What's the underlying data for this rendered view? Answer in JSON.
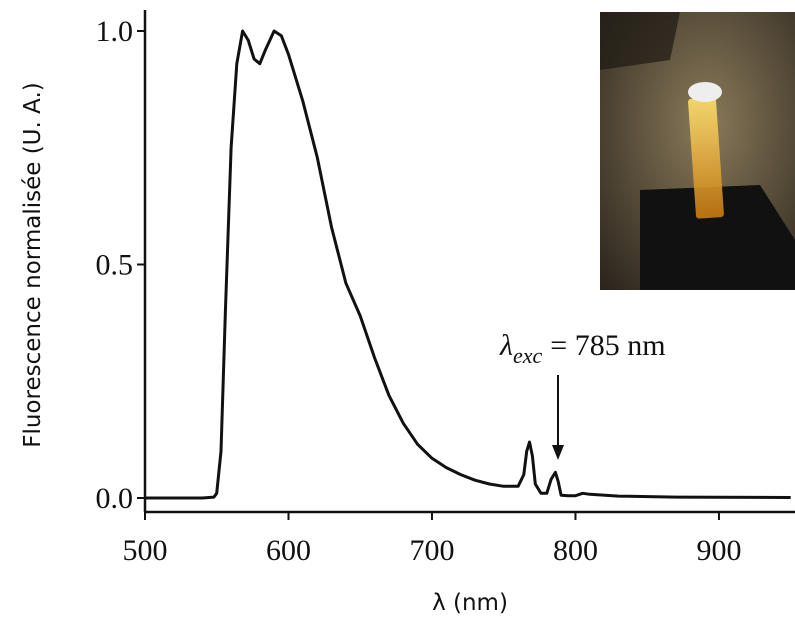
{
  "chart_data": {
    "type": "line",
    "xlabel": "λ (nm)",
    "ylabel": "Fluorescence normalisée (U. A.)",
    "annotation": {
      "symbol": "λ",
      "subscript": "exc",
      "text": "= 785 nm"
    },
    "x": [
      500,
      520,
      540,
      548,
      550,
      553,
      556,
      560,
      564,
      568,
      572,
      576,
      580,
      584,
      590,
      595,
      600,
      610,
      620,
      630,
      640,
      650,
      660,
      670,
      680,
      690,
      700,
      710,
      720,
      730,
      740,
      750,
      760,
      764,
      766,
      768,
      770,
      772,
      776,
      780,
      783,
      786,
      788,
      790,
      795,
      800,
      805,
      810,
      830,
      870,
      950
    ],
    "values": [
      0.0,
      0.0,
      0.0,
      0.002,
      0.01,
      0.1,
      0.4,
      0.75,
      0.93,
      1.0,
      0.98,
      0.94,
      0.93,
      0.96,
      1.0,
      0.99,
      0.95,
      0.85,
      0.73,
      0.58,
      0.46,
      0.39,
      0.3,
      0.22,
      0.16,
      0.115,
      0.085,
      0.065,
      0.05,
      0.038,
      0.03,
      0.025,
      0.025,
      0.05,
      0.1,
      0.12,
      0.09,
      0.03,
      0.01,
      0.01,
      0.04,
      0.055,
      0.035,
      0.006,
      0.005,
      0.005,
      0.01,
      0.008,
      0.004,
      0.002,
      0.001
    ],
    "color": "#111111",
    "xlim": [
      500,
      953
    ],
    "ylim": [
      -0.03,
      1.045
    ],
    "xticks": [
      500,
      600,
      700,
      800,
      900
    ],
    "yticks": [
      {
        "value": 0,
        "label": "0.0"
      },
      {
        "value": 0.5,
        "label": "0.5"
      },
      {
        "value": 1,
        "label": "1.0"
      }
    ]
  }
}
